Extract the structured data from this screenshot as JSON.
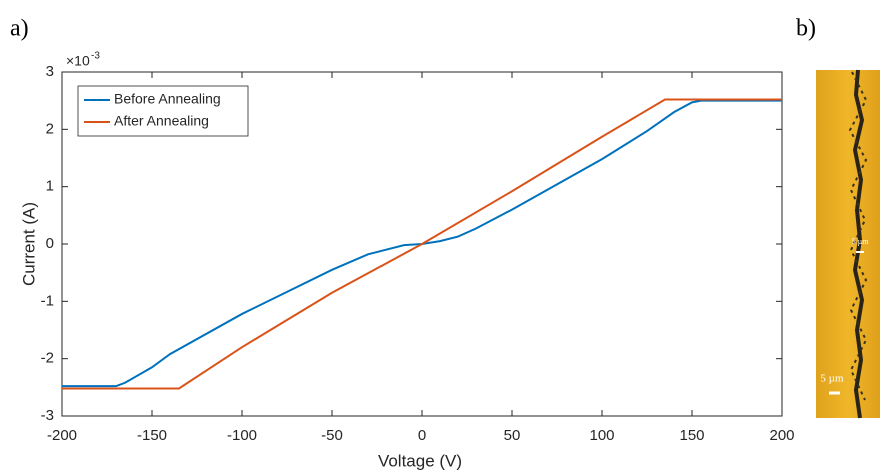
{
  "panel_labels": [
    "a)",
    "b)"
  ],
  "chart_data": {
    "type": "line",
    "xlabel": "Voltage (V)",
    "ylabel": "Current (A)",
    "y_multiplier": {
      "base": "×10",
      "exponent": "-3"
    },
    "xlim": [
      -200,
      200
    ],
    "xticks": [
      -200,
      -150,
      -100,
      -50,
      0,
      50,
      100,
      150,
      200
    ],
    "ylim": [
      -3,
      3
    ],
    "yticks": [
      -3,
      -2,
      -1,
      0,
      1,
      2,
      3
    ],
    "grid": false,
    "legend": "upper-left",
    "series": [
      {
        "name": "Before Annealing",
        "color": "#0072bd",
        "x": [
          -200,
          -170,
          -165,
          -150,
          -140,
          -100,
          -50,
          -30,
          -10,
          0,
          10,
          20,
          30,
          50,
          100,
          125,
          140,
          150,
          155,
          200
        ],
        "values": [
          -2.48,
          -2.48,
          -2.42,
          -2.15,
          -1.92,
          -1.22,
          -0.45,
          -0.18,
          -0.02,
          0,
          0.05,
          0.13,
          0.27,
          0.6,
          1.48,
          1.97,
          2.3,
          2.47,
          2.5,
          2.5
        ]
      },
      {
        "name": "After Annealing",
        "color": "#d95319",
        "x": [
          -200,
          -135,
          -100,
          -50,
          0,
          50,
          100,
          135,
          200
        ],
        "values": [
          -2.52,
          -2.52,
          -1.8,
          -0.85,
          0,
          0.92,
          1.87,
          2.52,
          2.52
        ]
      }
    ]
  },
  "micrograph": {
    "scale_labels": [
      "5 µm",
      "5 µm"
    ]
  }
}
